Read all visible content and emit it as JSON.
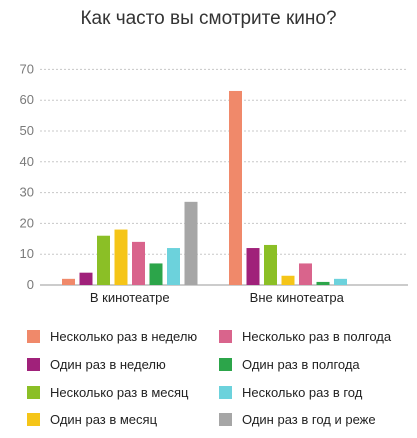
{
  "chart_data": {
    "type": "bar",
    "title": "Как часто вы смотрите кино?",
    "categories": [
      "В кинотеатре",
      "Вне кинотеатра"
    ],
    "ylim": [
      0,
      70
    ],
    "yticks": [
      0,
      10,
      20,
      30,
      40,
      50,
      60,
      70
    ],
    "grid": true,
    "legend_position": "bottom",
    "series": [
      {
        "name": "Несколько раз в неделю",
        "color": "#f0896a",
        "values": [
          2,
          63
        ]
      },
      {
        "name": "Один раз в неделю",
        "color": "#a0217a",
        "values": [
          4,
          12
        ]
      },
      {
        "name": "Несколько раз в месяц",
        "color": "#8bbf26",
        "values": [
          16,
          13
        ]
      },
      {
        "name": "Один раз в месяц",
        "color": "#f5c518",
        "values": [
          18,
          3
        ]
      },
      {
        "name": "Несколько раз в полгода",
        "color": "#d9648c",
        "values": [
          14,
          7
        ]
      },
      {
        "name": "Один раз в полгода",
        "color": "#2ca54a",
        "values": [
          7,
          1
        ]
      },
      {
        "name": "Несколько раз в год",
        "color": "#6cd2dc",
        "values": [
          12,
          2
        ]
      },
      {
        "name": "Один раз в год и реже",
        "color": "#a6a6a6",
        "values": [
          27,
          0
        ]
      }
    ]
  }
}
